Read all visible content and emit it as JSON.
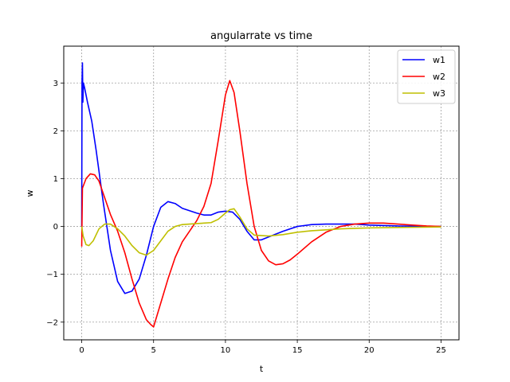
{
  "chart_data": {
    "type": "line",
    "title": "angularrate vs time",
    "xlabel": "t",
    "ylabel": "w",
    "xlim": [
      -1.25,
      26.25
    ],
    "ylim": [
      -2.37,
      3.77
    ],
    "xticks": [
      0,
      5,
      10,
      15,
      20,
      25
    ],
    "yticks": [
      -2,
      -1,
      0,
      1,
      2,
      3
    ],
    "xtick_labels": [
      "0",
      "5",
      "10",
      "15",
      "20",
      "25"
    ],
    "ytick_labels": [
      "−2",
      "−1",
      "0",
      "1",
      "2",
      "3"
    ],
    "grid": true,
    "legend_position": "top-right",
    "series": [
      {
        "name": "w1",
        "color": "#0000ff",
        "points": [
          [
            0,
            0
          ],
          [
            0.02,
            3.0
          ],
          [
            0.05,
            3.42
          ],
          [
            0.08,
            2.6
          ],
          [
            0.12,
            3.0
          ],
          [
            0.2,
            2.9
          ],
          [
            0.4,
            2.6
          ],
          [
            0.7,
            2.2
          ],
          [
            1.0,
            1.6
          ],
          [
            1.5,
            0.5
          ],
          [
            2.0,
            -0.5
          ],
          [
            2.5,
            -1.15
          ],
          [
            3.0,
            -1.4
          ],
          [
            3.5,
            -1.35
          ],
          [
            4.0,
            -1.1
          ],
          [
            4.5,
            -0.6
          ],
          [
            5.0,
            0.0
          ],
          [
            5.5,
            0.4
          ],
          [
            6.0,
            0.52
          ],
          [
            6.5,
            0.48
          ],
          [
            7.0,
            0.38
          ],
          [
            8.0,
            0.28
          ],
          [
            8.5,
            0.24
          ],
          [
            9.0,
            0.24
          ],
          [
            9.5,
            0.3
          ],
          [
            10.0,
            0.32
          ],
          [
            10.5,
            0.3
          ],
          [
            11.0,
            0.15
          ],
          [
            11.5,
            -0.1
          ],
          [
            12.0,
            -0.28
          ],
          [
            12.5,
            -0.28
          ],
          [
            13.0,
            -0.22
          ],
          [
            14.0,
            -0.1
          ],
          [
            15.0,
            0.0
          ],
          [
            16.0,
            0.04
          ],
          [
            17.0,
            0.05
          ],
          [
            18.0,
            0.05
          ],
          [
            19.0,
            0.05
          ],
          [
            20.0,
            0.03
          ],
          [
            22.0,
            0.01
          ],
          [
            25.0,
            0.0
          ]
        ]
      },
      {
        "name": "w2",
        "color": "#ff0000",
        "points": [
          [
            0,
            -0.42
          ],
          [
            0.05,
            0.8
          ],
          [
            0.3,
            1.0
          ],
          [
            0.6,
            1.1
          ],
          [
            0.9,
            1.08
          ],
          [
            1.2,
            0.95
          ],
          [
            1.6,
            0.6
          ],
          [
            2.0,
            0.25
          ],
          [
            2.5,
            -0.1
          ],
          [
            3.0,
            -0.55
          ],
          [
            3.5,
            -1.1
          ],
          [
            4.0,
            -1.6
          ],
          [
            4.5,
            -1.95
          ],
          [
            4.8,
            -2.05
          ],
          [
            5.0,
            -2.1
          ],
          [
            5.5,
            -1.6
          ],
          [
            6.0,
            -1.1
          ],
          [
            6.5,
            -0.65
          ],
          [
            7.0,
            -0.32
          ],
          [
            7.5,
            -0.1
          ],
          [
            8.0,
            0.12
          ],
          [
            8.5,
            0.42
          ],
          [
            9.0,
            0.9
          ],
          [
            9.5,
            1.8
          ],
          [
            10.0,
            2.75
          ],
          [
            10.3,
            3.05
          ],
          [
            10.6,
            2.8
          ],
          [
            11.0,
            2.0
          ],
          [
            11.5,
            0.9
          ],
          [
            12.0,
            0.0
          ],
          [
            12.5,
            -0.5
          ],
          [
            13.0,
            -0.72
          ],
          [
            13.5,
            -0.8
          ],
          [
            14.0,
            -0.78
          ],
          [
            14.5,
            -0.7
          ],
          [
            15.0,
            -0.58
          ],
          [
            16.0,
            -0.32
          ],
          [
            17.0,
            -0.12
          ],
          [
            18.0,
            0.0
          ],
          [
            19.0,
            0.05
          ],
          [
            20.0,
            0.07
          ],
          [
            21.0,
            0.07
          ],
          [
            22.0,
            0.05
          ],
          [
            23.0,
            0.03
          ],
          [
            24.0,
            0.01
          ],
          [
            25.0,
            0.0
          ]
        ]
      },
      {
        "name": "w3",
        "color": "#bfbf00",
        "points": [
          [
            0,
            0
          ],
          [
            0.1,
            -0.2
          ],
          [
            0.3,
            -0.38
          ],
          [
            0.5,
            -0.4
          ],
          [
            0.8,
            -0.3
          ],
          [
            1.2,
            -0.05
          ],
          [
            1.6,
            0.05
          ],
          [
            2.0,
            0.05
          ],
          [
            2.5,
            -0.05
          ],
          [
            3.0,
            -0.2
          ],
          [
            3.5,
            -0.4
          ],
          [
            4.0,
            -0.55
          ],
          [
            4.5,
            -0.6
          ],
          [
            5.0,
            -0.5
          ],
          [
            5.5,
            -0.3
          ],
          [
            6.0,
            -0.1
          ],
          [
            6.5,
            0.0
          ],
          [
            7.0,
            0.04
          ],
          [
            8.0,
            0.06
          ],
          [
            9.0,
            0.08
          ],
          [
            9.5,
            0.15
          ],
          [
            10.0,
            0.28
          ],
          [
            10.3,
            0.35
          ],
          [
            10.6,
            0.37
          ],
          [
            11.0,
            0.2
          ],
          [
            11.5,
            -0.05
          ],
          [
            12.0,
            -0.18
          ],
          [
            13.0,
            -0.2
          ],
          [
            14.0,
            -0.17
          ],
          [
            15.0,
            -0.12
          ],
          [
            16.0,
            -0.09
          ],
          [
            17.0,
            -0.07
          ],
          [
            18.0,
            -0.05
          ],
          [
            19.0,
            -0.04
          ],
          [
            20.0,
            -0.03
          ],
          [
            22.0,
            -0.02
          ],
          [
            25.0,
            -0.01
          ]
        ]
      }
    ]
  }
}
